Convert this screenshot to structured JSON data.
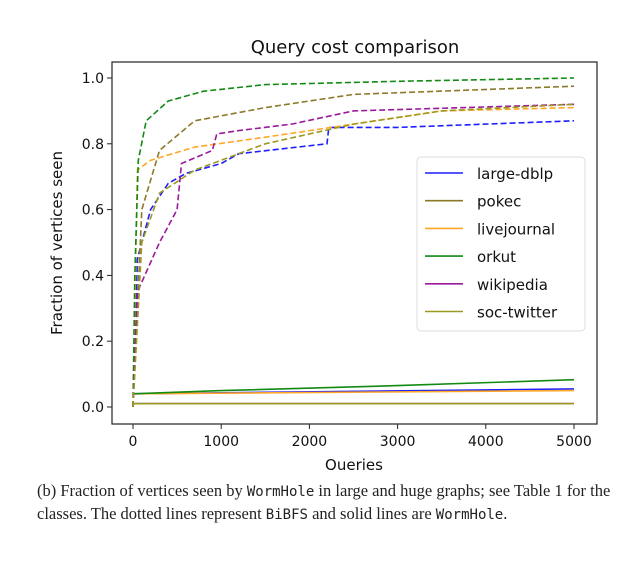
{
  "chart_data": {
    "type": "line",
    "title": "Query cost comparison",
    "xlabel": "Queries",
    "ylabel": "Fraction of vertices seen",
    "xlim": [
      -250,
      5250
    ],
    "ylim": [
      -0.05,
      1.05
    ],
    "xticks": [
      0,
      1000,
      2000,
      3000,
      4000,
      5000
    ],
    "yticks": [
      0.0,
      0.2,
      0.4,
      0.6,
      0.8,
      1.0
    ],
    "xtick_labels": [
      "0",
      "1000",
      "2000",
      "3000",
      "4000",
      "5000"
    ],
    "ytick_labels": [
      "0.0",
      "0.2",
      "0.4",
      "0.6",
      "0.8",
      "1.0"
    ],
    "legend_placement": "center-right",
    "series": [
      {
        "name": "large-dblp",
        "color": "#1f1fff",
        "bibfs": [
          [
            0,
            0
          ],
          [
            50,
            0.45
          ],
          [
            200,
            0.6
          ],
          [
            400,
            0.68
          ],
          [
            600,
            0.71
          ],
          [
            1000,
            0.74
          ],
          [
            1200,
            0.77
          ],
          [
            2200,
            0.8
          ],
          [
            2220,
            0.85
          ],
          [
            3000,
            0.85
          ],
          [
            5000,
            0.87
          ]
        ],
        "wormhole": [
          [
            0,
            0.04
          ],
          [
            5000,
            0.055
          ]
        ]
      },
      {
        "name": "pokec",
        "color": "#8c7a2a",
        "bibfs": [
          [
            0,
            0
          ],
          [
            100,
            0.6
          ],
          [
            300,
            0.78
          ],
          [
            700,
            0.87
          ],
          [
            1500,
            0.91
          ],
          [
            2500,
            0.95
          ],
          [
            5000,
            0.975
          ]
        ],
        "wormhole": [
          [
            0,
            0.01
          ],
          [
            5000,
            0.01
          ]
        ]
      },
      {
        "name": "livejournal",
        "color": "#ffa726",
        "bibfs": [
          [
            0,
            0
          ],
          [
            50,
            0.72
          ],
          [
            200,
            0.75
          ],
          [
            700,
            0.79
          ],
          [
            1500,
            0.82
          ],
          [
            2500,
            0.86
          ],
          [
            3500,
            0.9
          ],
          [
            5000,
            0.91
          ]
        ],
        "wormhole": [
          [
            0,
            0.04
          ],
          [
            5000,
            0.05
          ]
        ]
      },
      {
        "name": "orkut",
        "color": "#138a13",
        "bibfs": [
          [
            0,
            0
          ],
          [
            20,
            0.4
          ],
          [
            60,
            0.75
          ],
          [
            150,
            0.87
          ],
          [
            400,
            0.93
          ],
          [
            800,
            0.96
          ],
          [
            1500,
            0.98
          ],
          [
            3000,
            0.99
          ],
          [
            5000,
            1.0
          ]
        ],
        "wormhole": [
          [
            0,
            0.04
          ],
          [
            1000,
            0.05
          ],
          [
            3000,
            0.065
          ],
          [
            5000,
            0.083
          ]
        ]
      },
      {
        "name": "wikipedia",
        "color": "#9a1a9a",
        "bibfs": [
          [
            0,
            0
          ],
          [
            50,
            0.35
          ],
          [
            300,
            0.5
          ],
          [
            500,
            0.6
          ],
          [
            550,
            0.74
          ],
          [
            900,
            0.78
          ],
          [
            950,
            0.83
          ],
          [
            1200,
            0.84
          ],
          [
            1800,
            0.86
          ],
          [
            2500,
            0.9
          ],
          [
            5000,
            0.92
          ]
        ],
        "wormhole": [
          [
            0,
            0.01
          ],
          [
            5000,
            0.01
          ]
        ]
      },
      {
        "name": "soc-twitter",
        "color": "#9a9a22",
        "bibfs": [
          [
            0,
            0
          ],
          [
            100,
            0.5
          ],
          [
            300,
            0.65
          ],
          [
            700,
            0.72
          ],
          [
            1500,
            0.8
          ],
          [
            2500,
            0.86
          ],
          [
            3500,
            0.9
          ],
          [
            5000,
            0.92
          ]
        ],
        "wormhole": [
          [
            0,
            0.01
          ],
          [
            5000,
            0.01
          ]
        ]
      }
    ]
  },
  "caption": {
    "prefix": "(b)  Fraction of vertices seen by ",
    "code1": "WormHole",
    "mid1": " in large and huge graphs; see Table 1 for the classes. The dotted lines represent ",
    "code2": "BiBFS",
    "mid2": " and solid lines are ",
    "code3": "WormHole",
    "end": "."
  }
}
